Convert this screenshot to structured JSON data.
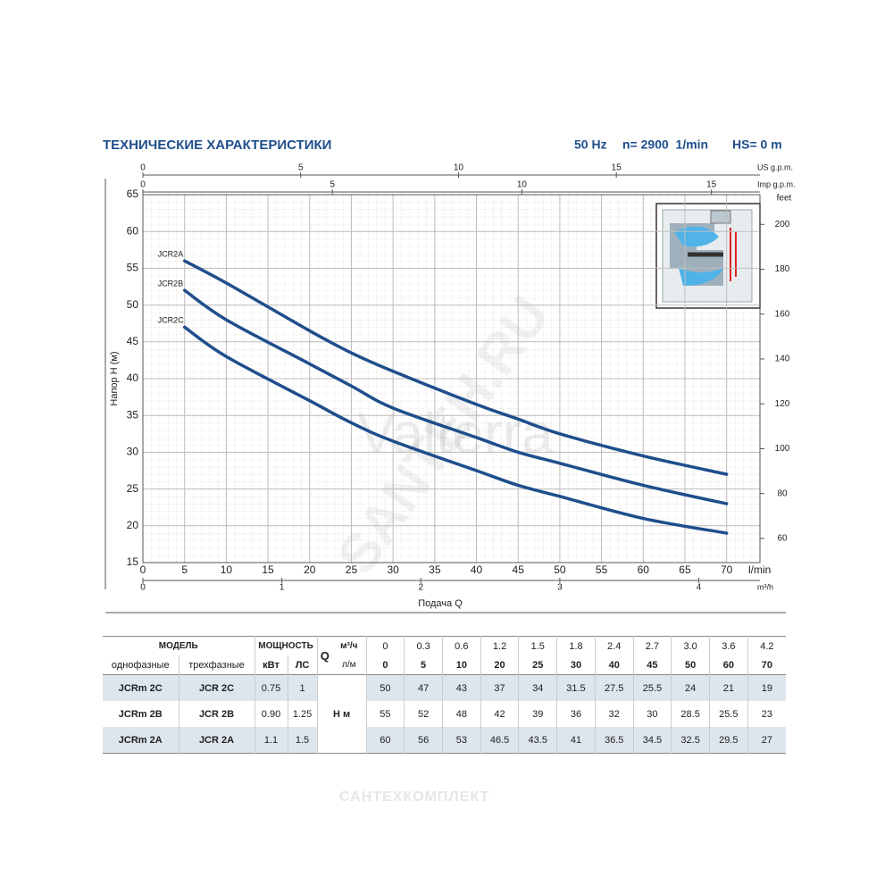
{
  "chart_data": {
    "type": "line",
    "title": "ТЕХНИЧЕСКИЕ ХАРАКТЕРИСТИКИ",
    "conditions": [
      "50 Hz",
      "n= 2900  1/min",
      "HS= 0 m"
    ],
    "xlabel": "Подача Q",
    "ylabel": "Напор H (м)",
    "x_unit": "l/min",
    "x": [
      5,
      10,
      20,
      25,
      30,
      40,
      45,
      50,
      60,
      70
    ],
    "xlim": [
      0,
      74
    ],
    "xticks": [
      0,
      5,
      10,
      15,
      20,
      25,
      30,
      35,
      40,
      45,
      50,
      55,
      60,
      65,
      70
    ],
    "ylim": [
      15,
      65
    ],
    "yticks": [
      15,
      20,
      25,
      30,
      35,
      40,
      45,
      50,
      55,
      60,
      65
    ],
    "grid": true,
    "minor_grid": true,
    "series": [
      {
        "name": "JCR2A",
        "color": "#1f4e8c",
        "values": [
          56,
          53,
          46.5,
          43.5,
          41,
          36.5,
          34.5,
          32.5,
          29.5,
          27
        ]
      },
      {
        "name": "JCR2B",
        "color": "#1f4e8c",
        "values": [
          52,
          48,
          42,
          39,
          36,
          32,
          30,
          28.5,
          25.5,
          23
        ]
      },
      {
        "name": "JCR2C",
        "color": "#1f4e8c",
        "values": [
          47,
          43,
          37,
          34,
          31.5,
          27.5,
          25.5,
          24,
          21,
          19
        ]
      }
    ],
    "extra_x_axes": [
      {
        "label": "US g.p.m.",
        "position": "top",
        "lim": [
          0,
          19.55
        ],
        "ticks": [
          0,
          5,
          10,
          15
        ]
      },
      {
        "label": "Imp g.p.m.",
        "position": "top",
        "lim": [
          0,
          16.28
        ],
        "ticks": [
          0,
          5,
          10,
          15
        ]
      },
      {
        "label": "m³/h",
        "position": "bottom",
        "lim": [
          0,
          4.44
        ],
        "ticks": [
          0,
          1,
          2,
          3,
          4
        ]
      }
    ],
    "y2label": "feet",
    "y2lim": [
      49.21,
      213.25
    ],
    "y2ticks": [
      60,
      80,
      100,
      120,
      140,
      160,
      180,
      200
    ],
    "watermarks": [
      "Valterra",
      "SANTEH.RU"
    ]
  },
  "table": {
    "header": {
      "model": "МОДЕЛЬ",
      "power": "МОЩНОСТЬ",
      "q": "Q",
      "q_unit_m3h": "м³/ч",
      "q_unit_lmin": "л/м",
      "single_phase": "однофазные",
      "three_phase": "трехфазные",
      "kw": "кВт",
      "hp": "ЛС",
      "h_unit": "H м"
    },
    "q_m3h": [
      "0",
      "0.3",
      "0.6",
      "1.2",
      "1.5",
      "1.8",
      "2.4",
      "2.7",
      "3.0",
      "3.6",
      "4.2"
    ],
    "q_lmin": [
      0,
      5,
      10,
      20,
      25,
      30,
      40,
      45,
      50,
      60,
      70
    ],
    "rows": [
      {
        "single": "JCRm 2C",
        "three": "JCR 2C",
        "kw": 0.75,
        "hp": 1,
        "h": [
          50,
          47,
          43,
          37,
          34,
          31.5,
          27.5,
          25.5,
          24,
          21,
          19
        ]
      },
      {
        "single": "JCRm 2B",
        "three": "JCR 2B",
        "kw": "0.90",
        "hp": 1.25,
        "h": [
          55,
          52,
          48,
          42,
          39,
          36,
          32,
          30,
          28.5,
          25.5,
          23
        ]
      },
      {
        "single": "JCRm 2A",
        "three": "JCR 2A",
        "kw": 1.1,
        "hp": 1.5,
        "h": [
          60,
          56,
          53,
          46.5,
          43.5,
          41,
          36.5,
          34.5,
          32.5,
          29.5,
          27
        ]
      }
    ]
  },
  "footer": "САНТЕХКОМПЛЕКТ"
}
